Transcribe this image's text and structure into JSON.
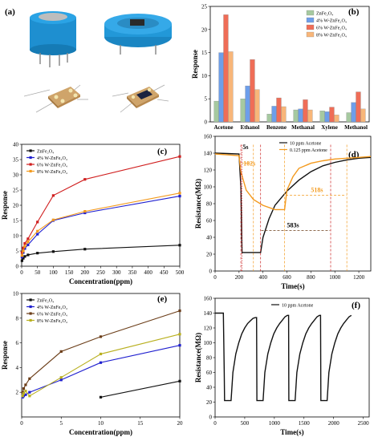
{
  "panels": {
    "a": "(a)",
    "b": "(b)",
    "c": "(c)",
    "d": "(d)",
    "e": "(e)",
    "f": "(f)"
  },
  "colors": {
    "black": "#111111",
    "blue": "#1f1fcf",
    "red": "#d01f1f",
    "orange": "#f39a1e",
    "brown": "#6b3d18",
    "olive": "#b9b020",
    "green": "#a6c9a0",
    "sky": "#6d9eea",
    "salmon": "#ef6d57",
    "peach": "#f8b679"
  },
  "devices": {
    "top_left": "sensor-can",
    "top_right": "sensor-base",
    "bottom_left": "chip-electrodes",
    "bottom_right": "chip-coated"
  },
  "chart_data": [
    {
      "id": "b",
      "type": "bar",
      "ylabel": "Response",
      "categories": [
        "Acetone",
        "Ethanol",
        "Benzene",
        "Methanal",
        "Xylene",
        "Methanol"
      ],
      "series": [
        {
          "name": "ZnFe₂O₄",
          "color": "#a6c9a0",
          "values": [
            4.5,
            5.0,
            1.7,
            2.6,
            2.4,
            2.0
          ]
        },
        {
          "name": "4% W-ZnFe₂O₄",
          "color": "#6d9eea",
          "values": [
            15.0,
            7.8,
            3.4,
            2.8,
            2.2,
            4.2
          ]
        },
        {
          "name": "6% W-ZnFe₂O₄",
          "color": "#ef6d57",
          "values": [
            23.2,
            13.5,
            5.2,
            4.8,
            3.2,
            6.5
          ]
        },
        {
          "name": "8% W-ZnFe₂O₄",
          "color": "#f8b679",
          "values": [
            15.2,
            7.0,
            3.3,
            2.6,
            1.5,
            2.8
          ]
        }
      ],
      "ylim": [
        0,
        25
      ],
      "yticks": [
        0,
        5,
        10,
        15,
        20,
        25
      ],
      "legend": "top-right"
    },
    {
      "id": "c",
      "type": "line",
      "xlabel": "Concentration(ppm)",
      "ylabel": "Response",
      "x": [
        1,
        5,
        10,
        20,
        50,
        100,
        200,
        500
      ],
      "series": [
        {
          "name": "ZnFe₂O₄",
          "color": "#111111",
          "values": [
            1.8,
            2.6,
            3.2,
            3.7,
            4.3,
            4.8,
            5.6,
            6.9
          ]
        },
        {
          "name": "4% W-ZnFe₂O₄",
          "color": "#1f1fcf",
          "values": [
            3.0,
            4.5,
            5.8,
            7.0,
            10.5,
            15.0,
            17.5,
            23.0
          ]
        },
        {
          "name": "6% W-ZnFe₂O₄",
          "color": "#d01f1f",
          "values": [
            4.5,
            6.0,
            7.5,
            9.0,
            14.5,
            23.2,
            28.5,
            36.0
          ]
        },
        {
          "name": "8% W-ZnFe₂O₄",
          "color": "#f39a1e",
          "values": [
            3.5,
            5.0,
            6.5,
            8.0,
            11.5,
            15.2,
            18.0,
            24.0
          ]
        }
      ],
      "xlim": [
        0,
        500
      ],
      "ylim": [
        0,
        40
      ],
      "xticks": [
        0,
        50,
        100,
        150,
        200,
        250,
        300,
        350,
        400,
        450,
        500
      ],
      "yticks": [
        0,
        5,
        10,
        15,
        20,
        25,
        30,
        35,
        40
      ],
      "legend": "top-left"
    },
    {
      "id": "d",
      "type": "line",
      "xlabel": "Time(s)",
      "ylabel": "Resistance(MΩ)",
      "series": [
        {
          "name": "10 ppm Acetone",
          "color": "#111111",
          "x": [
            0,
            100,
            200,
            215,
            225,
            380,
            400,
            450,
            500,
            600,
            700,
            800,
            900,
            1000,
            1100,
            1200,
            1300
          ],
          "values": [
            140,
            139.5,
            139,
            100,
            22,
            22,
            40,
            62,
            78,
            95,
            108,
            118,
            125,
            129,
            132,
            134,
            135
          ]
        },
        {
          "name": "0.125 ppm Acetone",
          "color": "#f39a1e",
          "x": [
            0,
            100,
            200,
            215,
            260,
            320,
            400,
            500,
            580,
            600,
            650,
            700,
            800,
            900,
            1000,
            1100,
            1200,
            1300
          ],
          "values": [
            139,
            138,
            137,
            118,
            96,
            85,
            78,
            73,
            73,
            96,
            112,
            122,
            128,
            131,
            133,
            134,
            135,
            136
          ]
        }
      ],
      "annotations": [
        "5s",
        "102s",
        "583s",
        "518s"
      ],
      "xlim": [
        0,
        1300
      ],
      "ylim": [
        0,
        160
      ],
      "xticks": [
        0,
        200,
        400,
        600,
        800,
        1000,
        1200
      ],
      "yticks": [
        0,
        20,
        40,
        60,
        80,
        100,
        120,
        140,
        160
      ],
      "legend": "top-right"
    },
    {
      "id": "e",
      "type": "line",
      "xlabel": "Concentration(ppm)",
      "ylabel": "Response",
      "series": [
        {
          "name": "ZnFe₂O₄",
          "color": "#111111",
          "x": [
            10,
            20
          ],
          "values": [
            1.6,
            2.9
          ]
        },
        {
          "name": "4% W-ZnFe₂O₄",
          "color": "#1f1fcf",
          "x": [
            0.125,
            0.25,
            0.5,
            1,
            5,
            10,
            20
          ],
          "values": [
            1.6,
            1.7,
            1.8,
            2.0,
            3.0,
            4.4,
            5.8
          ]
        },
        {
          "name": "6% W-ZnFe₂O₄",
          "color": "#6b3d18",
          "x": [
            0.125,
            0.25,
            0.5,
            1,
            5,
            10,
            20
          ],
          "values": [
            2.0,
            2.3,
            2.6,
            3.1,
            5.3,
            6.5,
            8.6
          ]
        },
        {
          "name": "8% W-ZnFe₂O₄",
          "color": "#b9b020",
          "x": [
            0.125,
            0.25,
            0.5,
            1,
            5,
            10,
            20
          ],
          "values": [
            1.7,
            1.9,
            2.1,
            1.7,
            3.2,
            5.1,
            6.7
          ]
        }
      ],
      "xlim": [
        0,
        20
      ],
      "ylim": [
        0,
        10
      ],
      "xticks": [
        0,
        5,
        10,
        15,
        20
      ],
      "yticks": [
        2,
        4,
        6,
        8,
        10
      ],
      "legend": "top-left"
    },
    {
      "id": "f",
      "type": "line",
      "xlabel": "Time(s)",
      "ylabel": "Resistance(MΩ)",
      "series": [
        {
          "name": "10 ppm Acetone",
          "color": "#111111",
          "x": [
            0,
            140,
            155,
            160,
            270,
            300,
            350,
            400,
            450,
            500,
            550,
            600,
            640,
            680,
            700,
            705,
            810,
            840,
            890,
            940,
            990,
            1040,
            1090,
            1140,
            1180,
            1220,
            1240,
            1245,
            1350,
            1380,
            1430,
            1480,
            1530,
            1580,
            1630,
            1680,
            1720,
            1760,
            1780,
            1785,
            1890,
            1920,
            1970,
            2020,
            2070,
            2120,
            2170,
            2220,
            2260,
            2300
          ],
          "values": [
            140,
            140,
            60,
            22,
            22,
            60,
            85,
            100,
            112,
            120,
            126,
            130,
            133,
            134,
            134,
            22,
            22,
            60,
            85,
            100,
            112,
            120,
            126,
            131,
            135,
            137,
            137,
            22,
            22,
            60,
            85,
            100,
            112,
            120,
            126,
            131,
            135,
            137,
            137,
            22,
            22,
            60,
            85,
            100,
            112,
            120,
            126,
            131,
            135,
            137
          ]
        }
      ],
      "xlim": [
        0,
        2600
      ],
      "ylim": [
        0,
        160
      ],
      "xticks": [
        0,
        500,
        1000,
        1500,
        2000,
        2500
      ],
      "yticks": [
        0,
        20,
        40,
        60,
        80,
        100,
        120,
        140,
        160
      ],
      "legend": "top-center"
    }
  ]
}
